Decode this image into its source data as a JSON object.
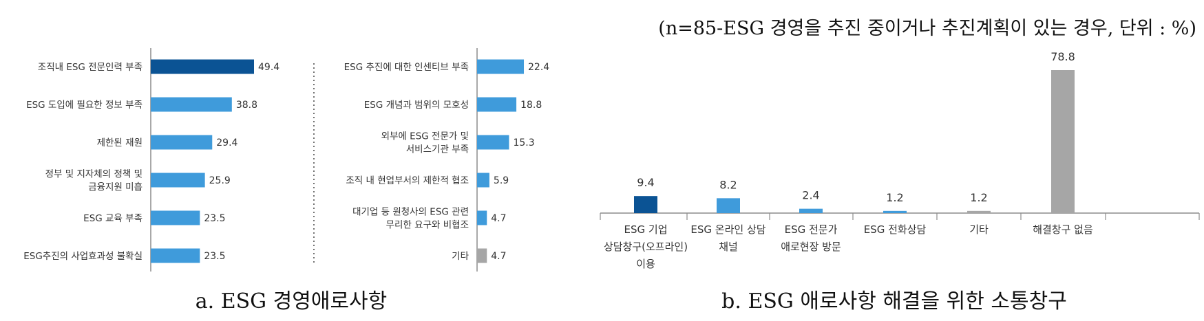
{
  "note": "(n=85-ESG 경영을 추진 중이거나 추진계획이 있는 경우, 단위 : %)",
  "colors": {
    "dark": "#0B5394",
    "blue": "#3F9BDB",
    "gray": "#A6A6A6",
    "axis": "#8C8C8C",
    "text": "#333333"
  },
  "chart_data": [
    {
      "type": "bar",
      "orientation": "horizontal",
      "caption": "a. ESG 경영애로사항",
      "panels": [
        {
          "categories": [
            "조직내 ESG 전문인력 부족",
            "ESG 도입에 필요한 정보 부족",
            "제한된 재원",
            "정부 및 지자체의 정책 및 금융지원 미흡",
            "ESG 교육 부족",
            "ESG추진의 사업효과성 불확실"
          ],
          "category_lines": [
            [
              "조직내 ESG 전문인력 부족"
            ],
            [
              "ESG 도입에 필요한 정보 부족"
            ],
            [
              "제한된 재원"
            ],
            [
              "정부 및 지자체의 정책 및",
              "금융지원 미흡"
            ],
            [
              "ESG 교육 부족"
            ],
            [
              "ESG추진의 사업효과성 불확실"
            ]
          ],
          "values": [
            49.4,
            38.8,
            29.4,
            25.9,
            23.5,
            23.5
          ],
          "value_labels": [
            "49.4",
            "38.8",
            "29.4",
            "25.9",
            "23.5",
            "23.5"
          ],
          "colors": [
            "dark",
            "blue",
            "blue",
            "blue",
            "blue",
            "blue"
          ]
        },
        {
          "categories": [
            "ESG 추진에 대한 인센티브 부족",
            "ESG 개념과 범위의 모호성",
            "외부에 ESG 전문가 및 서비스기관 부족",
            "조직 내 현업부서의 제한적 협조",
            "대기업 등 원청사의 ESG 관련 무리한 요구와 비협조",
            "기타"
          ],
          "category_lines": [
            [
              "ESG 추진에 대한 인센티브 부족"
            ],
            [
              "ESG 개념과 범위의 모호성"
            ],
            [
              "외부에 ESG 전문가 및",
              "서비스기관 부족"
            ],
            [
              "조직 내 현업부서의 제한적 협조"
            ],
            [
              "대기업 등 원청사의 ESG 관련",
              "무리한 요구와 비협조"
            ],
            [
              "기타"
            ]
          ],
          "values": [
            22.4,
            18.8,
            15.3,
            5.9,
            4.7,
            4.7
          ],
          "value_labels": [
            "22.4",
            "18.8",
            "15.3",
            "5.9",
            "4.7",
            "4.7"
          ],
          "colors": [
            "blue",
            "blue",
            "blue",
            "blue",
            "blue",
            "gray"
          ]
        }
      ]
    },
    {
      "type": "bar",
      "orientation": "vertical",
      "caption": "b. ESG 애로사항 해결을 위한 소통창구",
      "categories": [
        "ESG 기업 상담창구(오프라인) 이용",
        "ESG 온라인 상담 채널",
        "ESG 전문가 애로현장 방문",
        "ESG 전화상담",
        "기타",
        "해결창구 없음"
      ],
      "category_lines": [
        [
          "ESG 기업",
          "상담창구(오프라인)",
          "이용"
        ],
        [
          "ESG 온라인 상담",
          "채널"
        ],
        [
          "ESG 전문가",
          "애로현장 방문"
        ],
        [
          "ESG 전화상담"
        ],
        [
          "기타"
        ],
        [
          "해결창구 없음"
        ]
      ],
      "values": [
        9.4,
        8.2,
        2.4,
        1.2,
        1.2,
        78.8
      ],
      "value_labels": [
        "9.4",
        "8.2",
        "2.4",
        "1.2",
        "1.2",
        "78.8"
      ],
      "colors": [
        "dark",
        "blue",
        "blue",
        "blue",
        "gray",
        "gray"
      ]
    }
  ]
}
